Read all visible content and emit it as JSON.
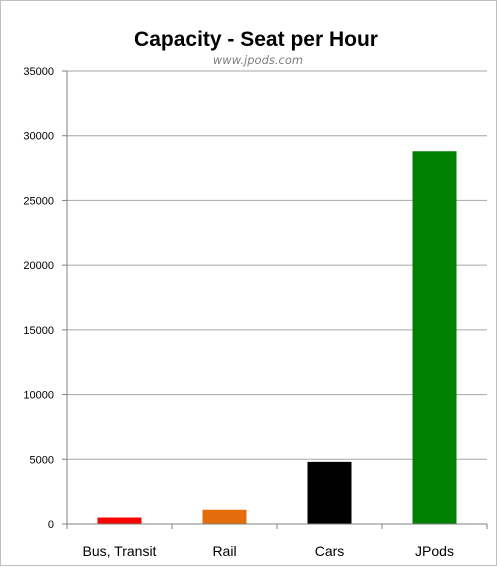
{
  "chart_data": {
    "type": "bar",
    "title": "Capacity - Seat per Hour",
    "subtitle": "www.jpods.com",
    "categories": [
      "Bus, Transit",
      "Rail",
      "Cars",
      "JPods"
    ],
    "values": [
      500,
      1100,
      4800,
      28800
    ],
    "colors": [
      "#ff0000",
      "#e46c0a",
      "#000000",
      "#008000"
    ],
    "ylim": [
      0,
      35000
    ],
    "yticks": [
      "0",
      "5000",
      "10000",
      "15000",
      "20000",
      "25000",
      "30000",
      "35000"
    ],
    "grid": true,
    "legend": "none"
  }
}
